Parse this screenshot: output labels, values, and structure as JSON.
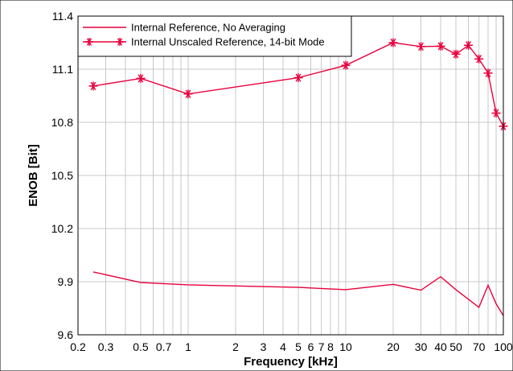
{
  "chart_data": {
    "type": "line",
    "xlabel": "Frequency [kHz]",
    "ylabel": "ENOB [Bit]",
    "x_scale": "log",
    "xlim": [
      0.2,
      100
    ],
    "ylim": [
      9.6,
      11.4
    ],
    "grid": true,
    "legend_position": "top-left",
    "x_ticks": [
      {
        "value": 0.2,
        "label": "0.2"
      },
      {
        "value": 0.3,
        "label": "0.3"
      },
      {
        "value": 0.5,
        "label": "0.5"
      },
      {
        "value": 0.7,
        "label": "0.7"
      },
      {
        "value": 1,
        "label": "1"
      },
      {
        "value": 2,
        "label": "2"
      },
      {
        "value": 3,
        "label": "3"
      },
      {
        "value": 4,
        "label": "4"
      },
      {
        "value": 5,
        "label": "5"
      },
      {
        "value": 6,
        "label": "6"
      },
      {
        "value": 7,
        "label": "7"
      },
      {
        "value": 8,
        "label": "8"
      },
      {
        "value": 10,
        "label": "10"
      },
      {
        "value": 20,
        "label": "20"
      },
      {
        "value": 30,
        "label": "30"
      },
      {
        "value": 40,
        "label": "40"
      },
      {
        "value": 50,
        "label": "50"
      },
      {
        "value": 70,
        "label": "70"
      },
      {
        "value": 100,
        "label": "100"
      }
    ],
    "x_minor_gridlines": [
      0.4,
      0.6,
      0.8,
      0.9,
      9,
      60,
      80,
      90
    ],
    "y_ticks": [
      {
        "value": 9.6,
        "label": "9.6"
      },
      {
        "value": 9.9,
        "label": "9.9"
      },
      {
        "value": 10.2,
        "label": "10.2"
      },
      {
        "value": 10.5,
        "label": "10.5"
      },
      {
        "value": 10.8,
        "label": "10.8"
      },
      {
        "value": 11.1,
        "label": "11.1"
      },
      {
        "value": 11.4,
        "label": "11.4"
      }
    ],
    "series": [
      {
        "name": "Internal Reference, No Averaging",
        "color": "#e8003c",
        "marker": "none",
        "x": [
          0.25,
          0.5,
          1,
          5,
          10,
          20,
          30,
          40,
          50,
          70,
          80,
          90,
          100
        ],
        "y": [
          9.955,
          9.895,
          9.882,
          9.868,
          9.855,
          9.885,
          9.852,
          9.928,
          9.855,
          9.755,
          9.88,
          9.775,
          9.708
        ]
      },
      {
        "name": "Internal Unscaled Reference, 14-bit Mode",
        "color": "#e8003c",
        "marker": "asterisk",
        "x": [
          0.25,
          0.5,
          1,
          5,
          10,
          20,
          30,
          40,
          50,
          60,
          70,
          80,
          90,
          100
        ],
        "y": [
          11.005,
          11.048,
          10.96,
          11.052,
          11.122,
          11.25,
          11.228,
          11.23,
          11.185,
          11.235,
          11.158,
          11.078,
          10.852,
          10.778
        ]
      }
    ]
  }
}
